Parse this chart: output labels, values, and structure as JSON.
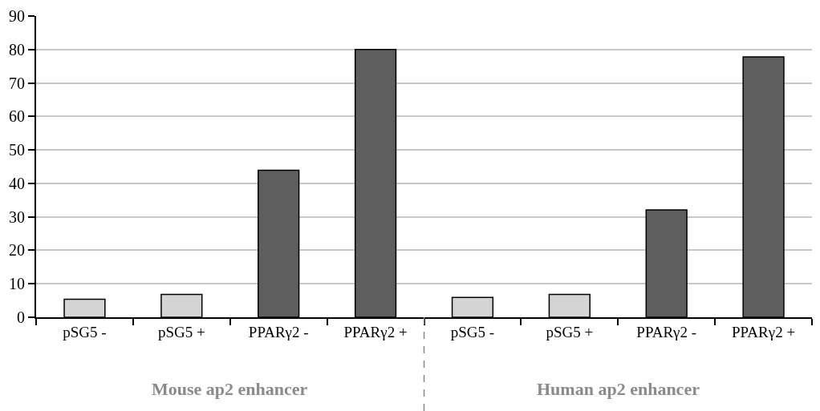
{
  "chart_data": {
    "type": "bar",
    "categories": [
      "pSG5 -",
      "pSG5 +",
      "PPARγ2 -",
      "PPARγ2 +",
      "pSG5 -",
      "pSG5 +",
      "PPARγ2 -",
      "PPARγ2 +"
    ],
    "values": [
      5.4,
      6.8,
      43.9,
      80,
      5.9,
      6.8,
      32.1,
      77.8
    ],
    "colors": [
      "#d4d4d4",
      "#d4d4d4",
      "#5e5e5e",
      "#5e5e5e",
      "#d4d4d4",
      "#d4d4d4",
      "#5e5e5e",
      "#5e5e5e"
    ],
    "annotations": [
      "Mouse ap2 enhancer",
      "Human ap2 enhancer"
    ],
    "ylim": [
      0,
      90
    ],
    "yticks": [
      0,
      10,
      20,
      30,
      40,
      50,
      60,
      70,
      80,
      90
    ],
    "grid": "y"
  }
}
